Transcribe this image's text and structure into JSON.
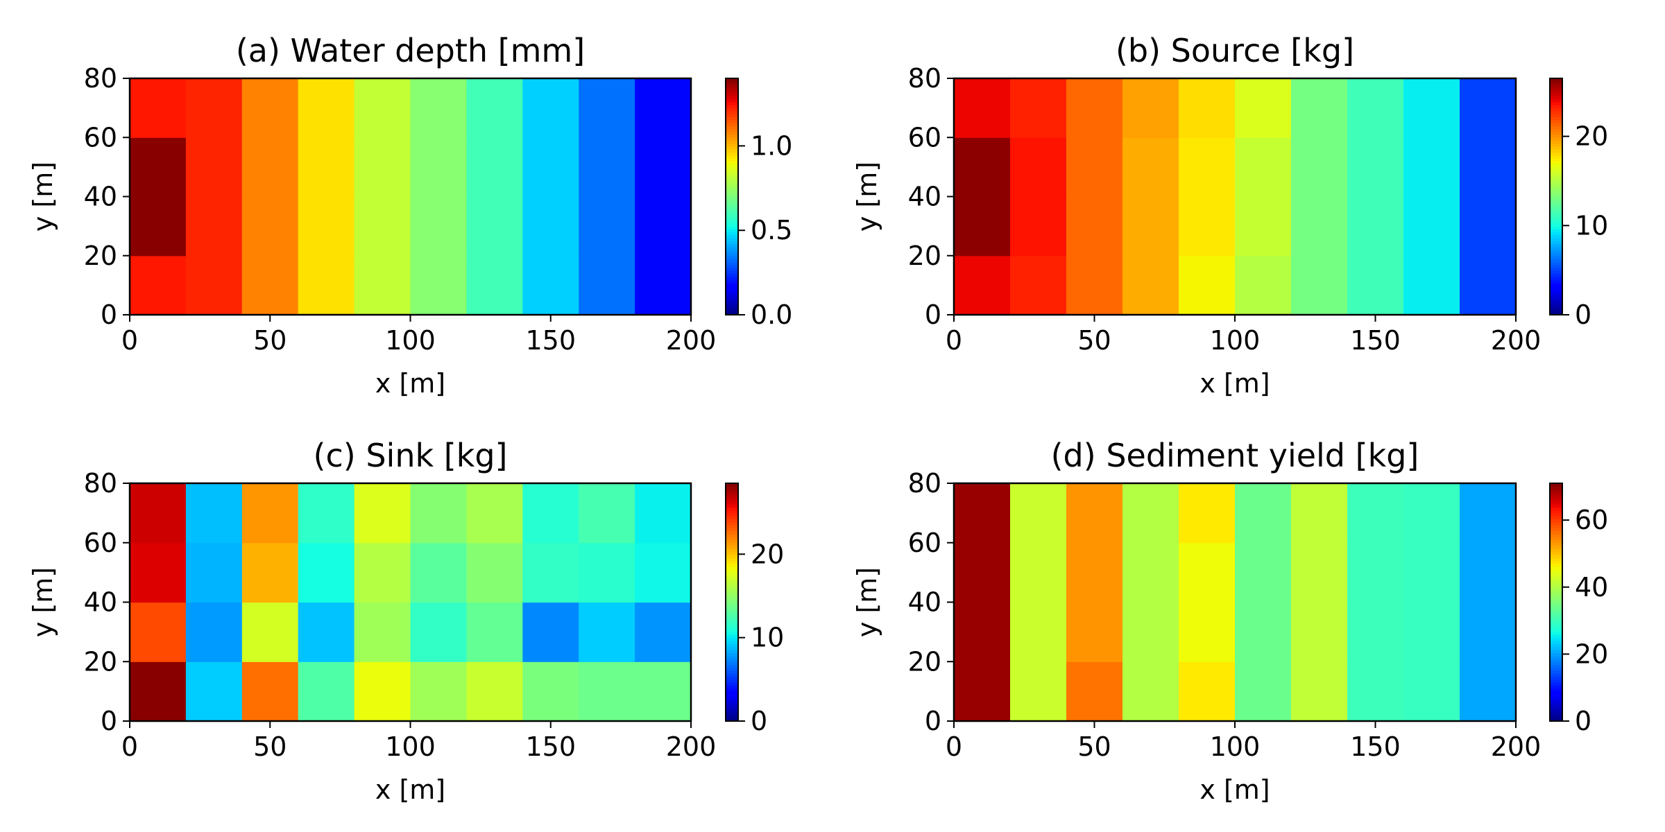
{
  "chart_data": [
    {
      "type": "heatmap",
      "title": "(a) Water depth [mm]",
      "xlabel": "x [m]",
      "ylabel": "y [m]",
      "xlim": [
        0,
        200
      ],
      "ylim": [
        0,
        80
      ],
      "xticks": [
        0,
        50,
        100,
        150,
        200
      ],
      "yticks": [
        0,
        20,
        40,
        60,
        80
      ],
      "x_edges": [
        0,
        20,
        40,
        60,
        80,
        100,
        120,
        140,
        160,
        180,
        200
      ],
      "y_edges": [
        0,
        20,
        40,
        60,
        80
      ],
      "colormap": "jet",
      "vmin": 0,
      "vmax": 1.4,
      "colorbar_ticks": [
        0.0,
        0.5,
        1.0
      ],
      "colorbar_ticklabels": [
        "0.0",
        "0.5",
        "1.0"
      ],
      "values": [
        [
          1.24,
          1.22,
          1.08,
          0.94,
          0.82,
          0.72,
          0.6,
          0.46,
          0.33,
          0.18
        ],
        [
          1.39,
          1.22,
          1.08,
          0.94,
          0.82,
          0.72,
          0.6,
          0.46,
          0.33,
          0.18
        ],
        [
          1.39,
          1.22,
          1.08,
          0.94,
          0.82,
          0.72,
          0.6,
          0.46,
          0.33,
          0.18
        ],
        [
          1.24,
          1.22,
          1.08,
          0.94,
          0.82,
          0.72,
          0.6,
          0.46,
          0.33,
          0.18
        ]
      ]
    },
    {
      "type": "heatmap",
      "title": "(b) Source [kg]",
      "xlabel": "x [m]",
      "ylabel": "y [m]",
      "xlim": [
        0,
        200
      ],
      "ylim": [
        0,
        80
      ],
      "xticks": [
        0,
        50,
        100,
        150,
        200
      ],
      "yticks": [
        0,
        20,
        40,
        60,
        80
      ],
      "x_edges": [
        0,
        20,
        40,
        60,
        80,
        100,
        120,
        140,
        160,
        180,
        200
      ],
      "y_edges": [
        0,
        20,
        40,
        60,
        80
      ],
      "colormap": "jet",
      "vmin": 0,
      "vmax": 26.5,
      "colorbar_ticks": [
        0,
        10,
        20
      ],
      "colorbar_ticklabels": [
        "0",
        "10",
        "20"
      ],
      "values": [
        [
          24,
          23.2,
          21.2,
          19.3,
          17.2,
          15.1,
          13,
          11.3,
          9.5,
          5
        ],
        [
          26.2,
          23.6,
          21.2,
          19.3,
          17.6,
          15.6,
          13,
          11.3,
          9.5,
          5
        ],
        [
          26.2,
          23.6,
          21.2,
          19.3,
          17.6,
          15.6,
          13,
          11.3,
          9.5,
          5
        ],
        [
          24,
          23.2,
          21.2,
          19.6,
          17.9,
          16.3,
          13,
          11.3,
          9.5,
          5
        ]
      ]
    },
    {
      "type": "heatmap",
      "title": "(c) Sink [kg]",
      "xlabel": "x [m]",
      "ylabel": "y [m]",
      "xlim": [
        0,
        200
      ],
      "ylim": [
        0,
        80
      ],
      "xticks": [
        0,
        50,
        100,
        150,
        200
      ],
      "yticks": [
        0,
        20,
        40,
        60,
        80
      ],
      "x_edges": [
        0,
        20,
        40,
        60,
        80,
        100,
        120,
        140,
        160,
        180,
        200
      ],
      "y_edges": [
        0,
        20,
        40,
        60,
        80
      ],
      "colormap": "jet",
      "vmin": 0,
      "vmax": 28.5,
      "colorbar_ticks": [
        0,
        10,
        20
      ],
      "colorbar_ticklabels": [
        "0",
        "10",
        "20"
      ],
      "values": [
        [
          28.3,
          9.3,
          22.6,
          12.7,
          18.1,
          15.5,
          16.9,
          14.2,
          13.7,
          13.7
        ],
        [
          23.7,
          7.9,
          17.3,
          9,
          15.5,
          11.7,
          13.4,
          7.4,
          9.3,
          7.7
        ],
        [
          26.2,
          8.6,
          20.6,
          10.7,
          16.2,
          13.1,
          14.6,
          11.7,
          11.4,
          10.5
        ],
        [
          26.6,
          8.9,
          21.4,
          11.6,
          17.6,
          14.6,
          15.8,
          11.3,
          12.4,
          10.3
        ]
      ]
    },
    {
      "type": "heatmap",
      "title": "(d) Sediment yield [kg]",
      "xlabel": "x [m]",
      "ylabel": "y [m]",
      "xlim": [
        0,
        200
      ],
      "ylim": [
        0,
        80
      ],
      "xticks": [
        0,
        50,
        100,
        150,
        200
      ],
      "yticks": [
        0,
        20,
        40,
        60,
        80
      ],
      "x_edges": [
        0,
        20,
        40,
        60,
        80,
        100,
        120,
        140,
        160,
        180,
        200
      ],
      "y_edges": [
        0,
        20,
        40,
        60,
        80
      ],
      "colormap": "jet",
      "vmin": 0,
      "vmax": 71,
      "colorbar_ticks": [
        0,
        20,
        40,
        60
      ],
      "colorbar_ticklabels": [
        "0",
        "20",
        "40",
        "60"
      ],
      "values": [
        [
          69.5,
          42.3,
          56,
          40.3,
          47,
          34,
          41.5,
          30,
          29.5,
          20.5
        ],
        [
          69.5,
          42.3,
          53.5,
          40.3,
          45.5,
          34,
          41.5,
          30,
          29.5,
          20.5
        ],
        [
          69.5,
          42.3,
          53.5,
          40.3,
          45.5,
          34,
          41.5,
          30,
          29.5,
          20.5
        ],
        [
          69.5,
          42.3,
          53.5,
          40.3,
          47,
          34,
          41.5,
          30,
          29.5,
          20.5
        ]
      ]
    }
  ]
}
